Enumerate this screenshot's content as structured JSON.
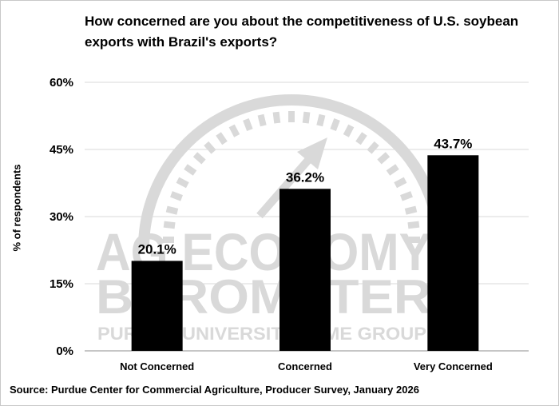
{
  "chart_data": {
    "type": "bar",
    "title": "How concerned are you about the competitiveness of U.S. soybean exports with Brazil's exports?",
    "ylabel": "% of respondents",
    "xlabel": "",
    "categories": [
      "Not Concerned",
      "Concerned",
      "Very Concerned"
    ],
    "values": [
      20.1,
      36.2,
      43.7
    ],
    "data_labels": [
      "20.1%",
      "36.2%",
      "43.7%"
    ],
    "yticks": [
      "0%",
      "15%",
      "30%",
      "45%",
      "60%"
    ],
    "ytick_values": [
      0,
      15,
      30,
      45,
      60
    ],
    "ylim": [
      0,
      60
    ],
    "grid": true,
    "legend": "none",
    "bar_color": "#000000",
    "source": "Source: Purdue Center for Commercial Agriculture, Producer Survey, January 2026"
  },
  "watermark": {
    "line1": "AG ECONOMY",
    "line2": "BAROMETER",
    "line3": "PURDUE UNIVERSITY | CME GROUP",
    "color": "#d9d9d9"
  }
}
